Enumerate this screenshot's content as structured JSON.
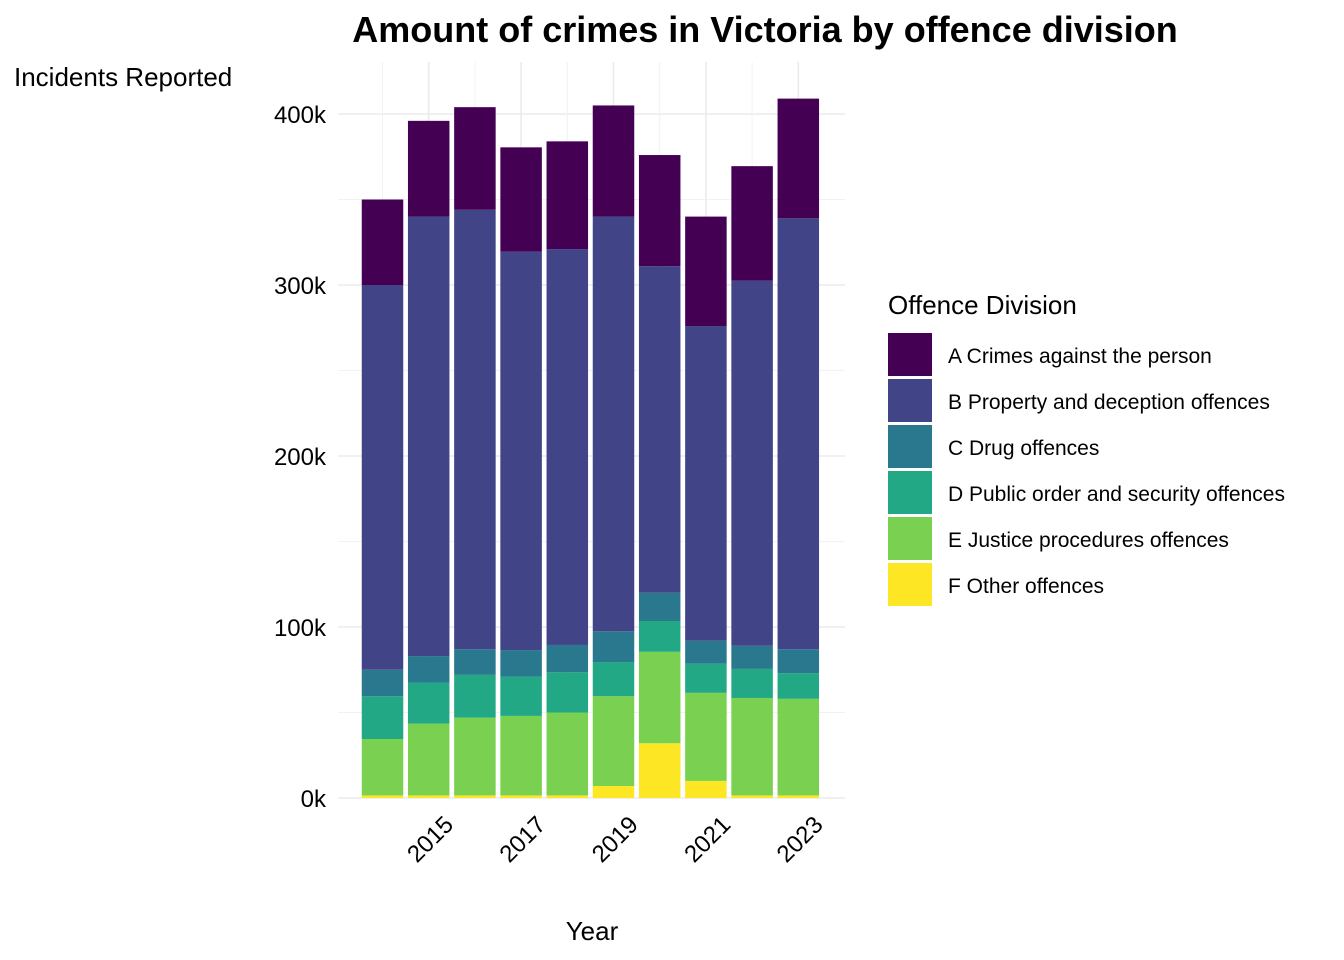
{
  "chart_data": {
    "type": "bar",
    "stacked": true,
    "title": "Amount of crimes in Victoria by offence division",
    "xlabel": "Year",
    "ylabel": "Incidents Reported",
    "x": [
      2014,
      2015,
      2016,
      2017,
      2018,
      2019,
      2020,
      2021,
      2022,
      2023
    ],
    "x_tick_labels": [
      "2015",
      "2017",
      "2019",
      "2021",
      "2023"
    ],
    "y_tick_labels": [
      "0k",
      "100k",
      "200k",
      "300k",
      "400k"
    ],
    "ylim": [
      0,
      400000
    ],
    "grid": true,
    "legend": {
      "title": "Offence Division",
      "position": "right"
    },
    "series": [
      {
        "name": "F Other offences",
        "color": "#FDE725",
        "values": [
          1500,
          1500,
          1500,
          1500,
          1500,
          7000,
          32000,
          10000,
          1500,
          1500
        ]
      },
      {
        "name": "E Justice procedures offences",
        "color": "#7AD151",
        "values": [
          33000,
          42000,
          45500,
          46500,
          48500,
          52500,
          53500,
          51500,
          57000,
          56500
        ]
      },
      {
        "name": "D Public order and security offences",
        "color": "#22A884",
        "values": [
          25000,
          24000,
          25000,
          23000,
          23500,
          20000,
          18000,
          17000,
          17000,
          15000
        ]
      },
      {
        "name": "C Drug offences",
        "color": "#2A788E",
        "values": [
          15500,
          15500,
          15000,
          15500,
          16000,
          18000,
          16500,
          13500,
          13500,
          14000
        ]
      },
      {
        "name": "B Property and deception offences",
        "color": "#414487",
        "values": [
          225000,
          257000,
          257000,
          233000,
          231500,
          242500,
          191000,
          184000,
          213500,
          252000
        ]
      },
      {
        "name": "A Crimes against the person",
        "color": "#440154",
        "values": [
          50000,
          56000,
          60000,
          61000,
          63000,
          65000,
          65000,
          64000,
          67000,
          70000
        ]
      }
    ]
  }
}
